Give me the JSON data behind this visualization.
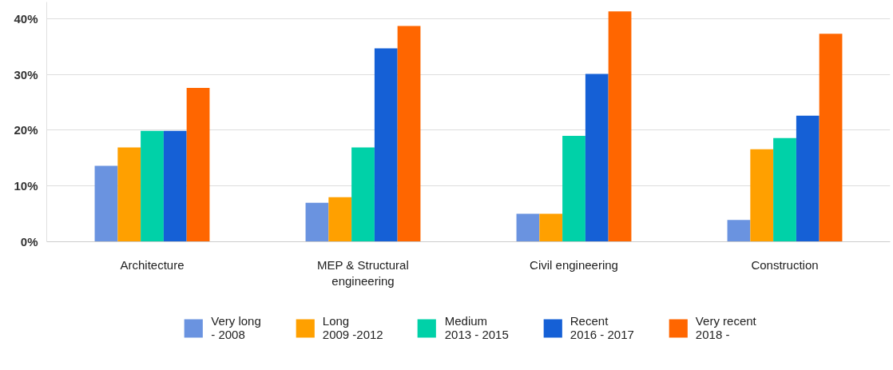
{
  "chart_data": {
    "type": "bar",
    "categories": [
      "Architecture",
      "MEP & Structural engineering",
      "Civil engineering",
      "Construction"
    ],
    "series": [
      {
        "name": "Very long\n- 2008",
        "color": "#6a93e0",
        "values": [
          13.6,
          7.0,
          5.0,
          3.9
        ]
      },
      {
        "name": "Long\n2009 -2012",
        "color": "#ffa000",
        "values": [
          16.9,
          8.0,
          5.0,
          16.6
        ]
      },
      {
        "name": "Medium\n2013 - 2015",
        "color": "#00d1a8",
        "values": [
          19.9,
          16.9,
          19.0,
          18.6
        ]
      },
      {
        "name": "Recent\n2016 - 2017",
        "color": "#1560d6",
        "values": [
          19.9,
          34.7,
          30.1,
          22.6
        ]
      },
      {
        "name": "Very recent\n2018 -",
        "color": "#ff6600",
        "values": [
          27.6,
          38.7,
          41.3,
          37.3
        ]
      }
    ],
    "ylim": [
      0,
      43
    ],
    "yticks": [
      {
        "value": 0,
        "label": "0%"
      },
      {
        "value": 10,
        "label": "10%"
      },
      {
        "value": 20,
        "label": "20%"
      },
      {
        "value": 30,
        "label": "30%"
      },
      {
        "value": 40,
        "label": "40%"
      }
    ],
    "grid": "y",
    "legend": "bottom"
  }
}
